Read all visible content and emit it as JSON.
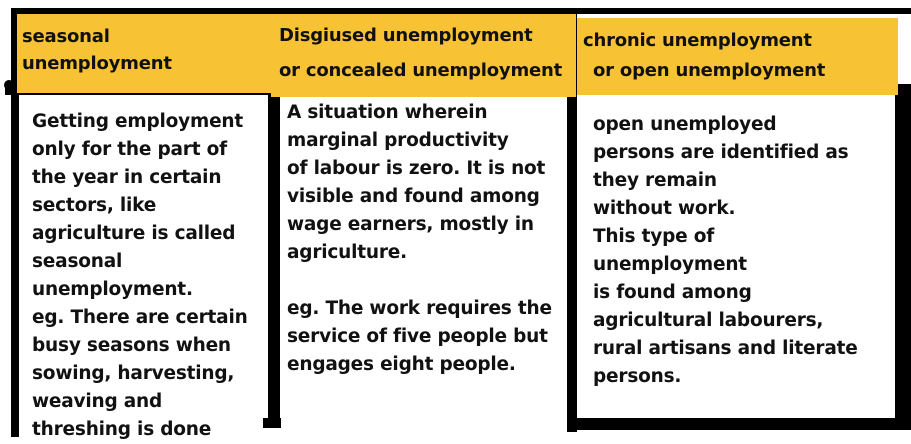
{
  "columns": [
    {
      "header": [
        "seasonal",
        "unemployment"
      ],
      "body": [
        "Getting employment",
        "only for the part of",
        "the year in certain",
        "sectors, like",
        "agriculture is called",
        "seasonal",
        "unemployment.",
        "eg. There are certain",
        "busy seasons when",
        "sowing, harvesting,",
        "weaving and",
        "threshing is done"
      ]
    },
    {
      "header": [
        "Disgiused unemployment",
        "or concealed unemployment"
      ],
      "body": [
        "A situation wherein",
        "marginal productivity",
        "of labour is zero. It is not",
        "visible and found among",
        "wage earners, mostly in",
        "agriculture.",
        "",
        "eg. The work requires the",
        "service of five people but",
        "engages eight people."
      ]
    },
    {
      "header": [
        "chronic unemployment",
        "or open unemployment"
      ],
      "body": [
        "open unemployed",
        "persons are identified as",
        "they remain",
        "without work.",
        "This type of",
        "unemployment",
        "is found among",
        "agricultural labourers,",
        "rural artisans and literate",
        "persons."
      ]
    }
  ],
  "colors": {
    "header_bg": "#f7c335",
    "border": "#000000",
    "text": "#111111",
    "background": "#ffffff"
  }
}
